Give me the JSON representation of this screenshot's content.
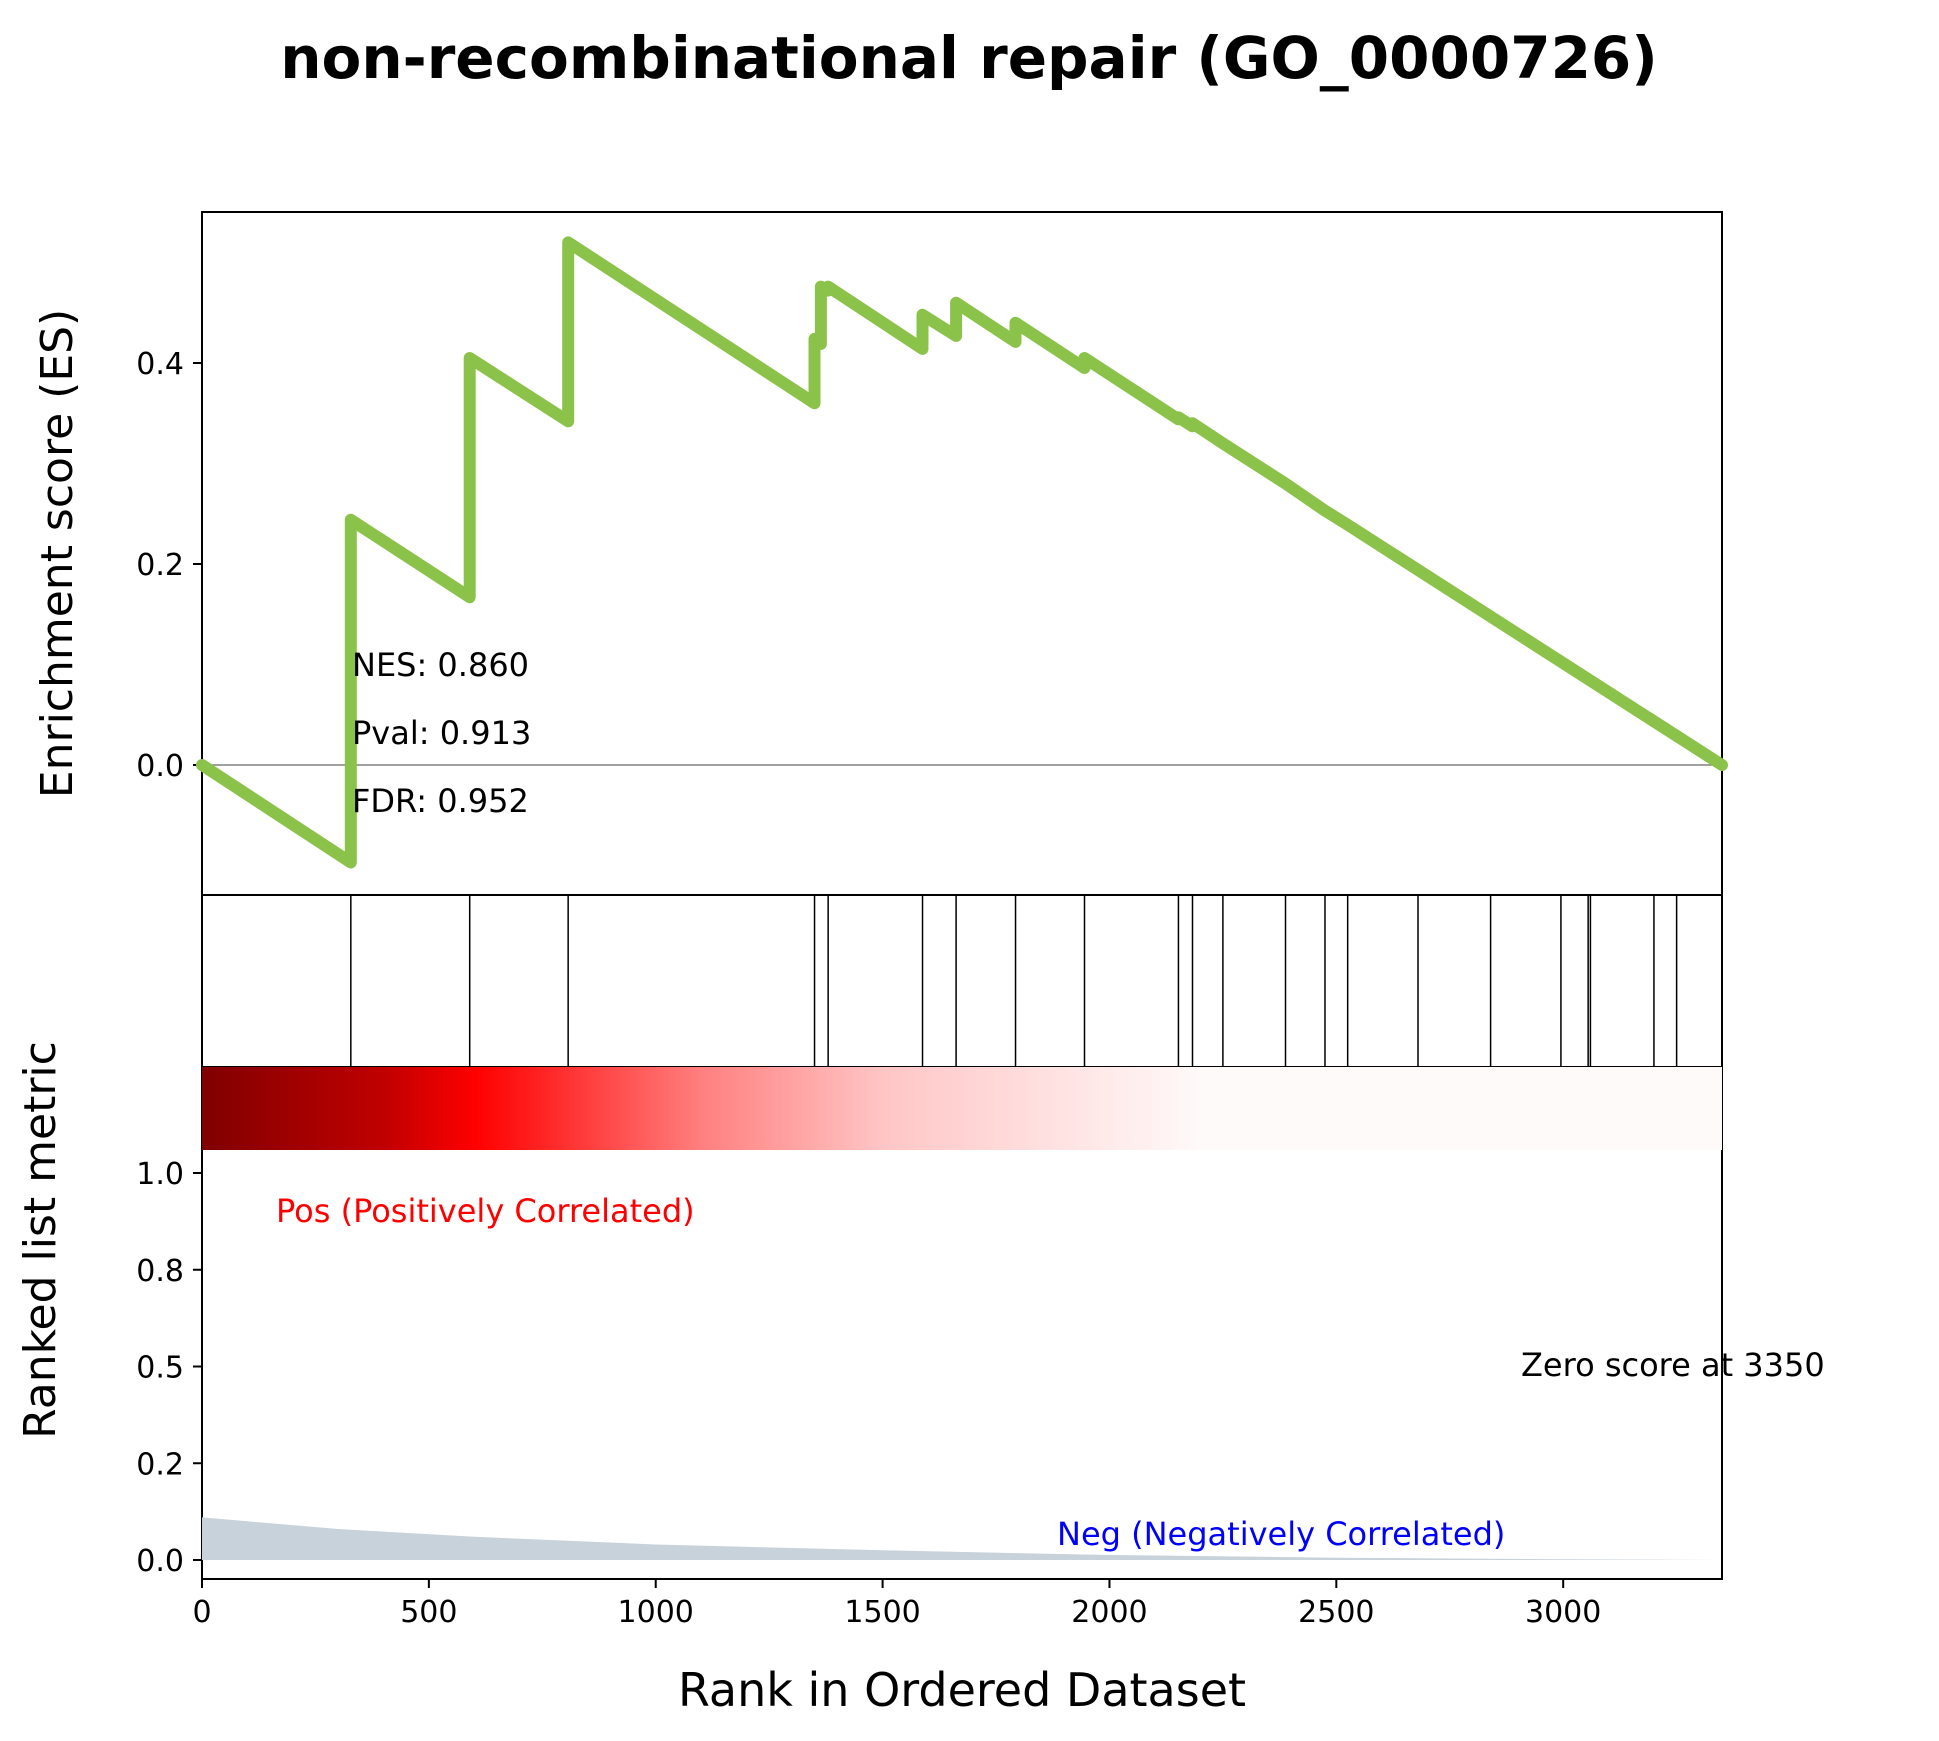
{
  "title": "non-recombinational repair (GO_0000726)",
  "colors": {
    "es_line": "#8bc34a",
    "pos_label": "#ff0000",
    "neg_label": "#0000ff",
    "ranked_fill": "#c8d2da",
    "zero_line": "#808080"
  },
  "chart_data": [
    {
      "type": "line",
      "panel": "enrichment",
      "ylabel": "Enrichment score (ES)",
      "xlim": [
        0,
        3350
      ],
      "ylim": [
        -0.13,
        0.55
      ],
      "yticks": [
        0.0,
        0.2,
        0.4
      ],
      "ytick_labels": [
        "0.0",
        "0.2",
        "0.4"
      ],
      "series": [
        {
          "x": [
            0,
            328,
            328,
            590,
            590,
            807,
            807,
            1350,
            1350,
            1364,
            1364,
            1380,
            1380,
            1588,
            1588,
            1662,
            1662,
            1793,
            1793,
            1945,
            1945,
            2152,
            2152,
            2183,
            2183,
            2250,
            2250,
            2388,
            2388,
            2475,
            2475,
            2525,
            2525,
            3350
          ],
          "y": [
            0.0,
            -0.097,
            0.244,
            0.167,
            0.405,
            0.342,
            0.52,
            0.36,
            0.424,
            0.419,
            0.476,
            0.472,
            0.476,
            0.414,
            0.448,
            0.427,
            0.46,
            0.421,
            0.44,
            0.395,
            0.405,
            0.344,
            0.346,
            0.337,
            0.34,
            0.32,
            0.32,
            0.28,
            0.28,
            0.253,
            0.253,
            0.239,
            0.239,
            0.0
          ]
        }
      ],
      "annotations": [
        "NES: 0.860",
        "Pval: 0.913",
        "FDR: 0.952"
      ]
    },
    {
      "type": "hits",
      "panel": "gene_hits",
      "x": [
        328,
        590,
        807,
        1350,
        1380,
        1588,
        1662,
        1793,
        1945,
        2152,
        2183,
        2250,
        2388,
        2475,
        2525,
        2680,
        2840,
        2995,
        3055,
        3060,
        3200,
        3250
      ]
    },
    {
      "type": "area",
      "panel": "ranked_metric",
      "ylabel": "Ranked list metric",
      "xlabel": "Rank in Ordered Dataset",
      "xlim": [
        0,
        3350
      ],
      "ylim": [
        -0.05,
        1.2
      ],
      "xticks": [
        0,
        500,
        1000,
        1500,
        2000,
        2500,
        3000
      ],
      "xtick_labels": [
        "0",
        "500",
        "1000",
        "1500",
        "2000",
        "2500",
        "3000"
      ],
      "yticks": [
        0.0,
        0.25,
        0.5,
        0.75,
        1.0
      ],
      "ytick_labels": [
        "0.0",
        "0.2",
        "0.5",
        "0.8",
        "1.0"
      ],
      "x": [
        0,
        100,
        300,
        600,
        1000,
        1500,
        2000,
        2500,
        3000,
        3350
      ],
      "y": [
        0.11,
        0.1,
        0.08,
        0.06,
        0.04,
        0.025,
        0.013,
        0.006,
        0.002,
        0.0
      ],
      "pos_label": "Pos (Positively Correlated)",
      "neg_label": "Neg (Negatively Correlated)",
      "zero_label": "Zero score at 3350"
    }
  ]
}
